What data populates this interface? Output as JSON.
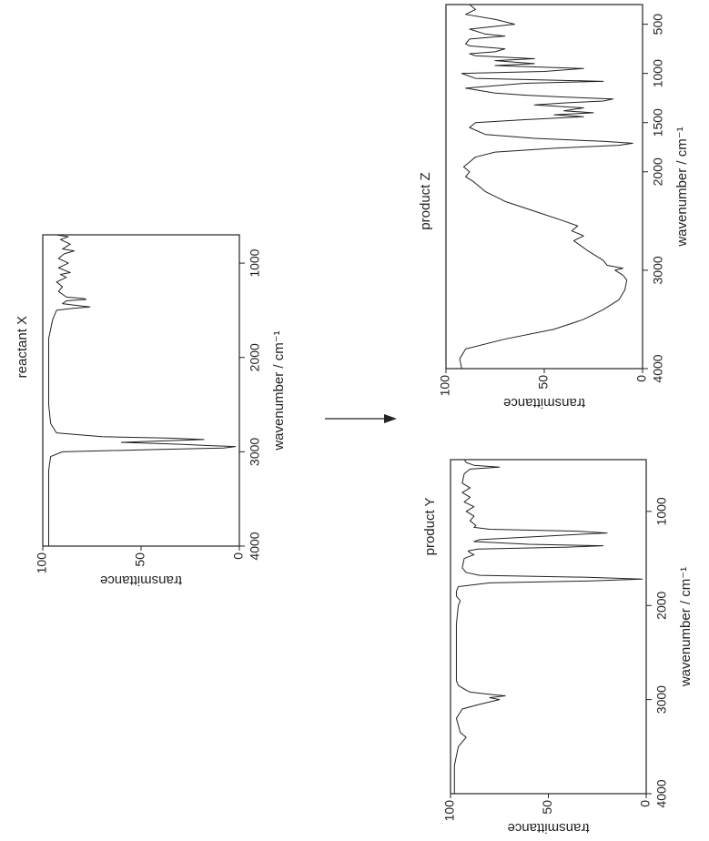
{
  "chart_data": [
    {
      "type": "line",
      "title": "reactant X",
      "xlabel": "wavenumber / cm⁻¹",
      "ylabel": "transmittance",
      "color": "#222222",
      "xlim": [
        4000,
        700
      ],
      "ylim": [
        0,
        100
      ],
      "xticks": [
        4000,
        3000,
        2000,
        1000
      ],
      "yticks": [
        0,
        50,
        100
      ],
      "x": [
        4000,
        3600,
        3200,
        3050,
        3000,
        2975,
        2960,
        2945,
        2935,
        2920,
        2900,
        2885,
        2870,
        2855,
        2840,
        2800,
        2700,
        2500,
        2200,
        2000,
        1800,
        1700,
        1600,
        1500,
        1480,
        1465,
        1450,
        1430,
        1400,
        1385,
        1375,
        1360,
        1300,
        1250,
        1200,
        1150,
        1120,
        1100,
        1050,
        1000,
        950,
        900,
        870,
        850,
        800,
        750,
        720,
        700
      ],
      "values": [
        97,
        97,
        97,
        96,
        90,
        40,
        8,
        2,
        15,
        30,
        60,
        40,
        18,
        35,
        70,
        93,
        96,
        97,
        97,
        97,
        97,
        96,
        95,
        93,
        85,
        76,
        82,
        90,
        88,
        78,
        79,
        88,
        92,
        90,
        93,
        88,
        91,
        86,
        92,
        87,
        92,
        89,
        84,
        90,
        86,
        91,
        87,
        93
      ]
    },
    {
      "type": "line",
      "title": "product Y",
      "xlabel": "wavenumber / cm⁻¹",
      "ylabel": "transmittance",
      "color": "#222222",
      "xlim": [
        4000,
        450
      ],
      "ylim": [
        0,
        100
      ],
      "xticks": [
        4000,
        3000,
        2000,
        1000
      ],
      "yticks": [
        0,
        50,
        100
      ],
      "x": [
        4000,
        3700,
        3500,
        3450,
        3400,
        3350,
        3200,
        3100,
        3050,
        3000,
        2980,
        2960,
        2940,
        2920,
        2900,
        2850,
        2800,
        2700,
        2500,
        2200,
        2000,
        1950,
        1900,
        1850,
        1800,
        1760,
        1740,
        1720,
        1700,
        1680,
        1650,
        1600,
        1500,
        1460,
        1440,
        1420,
        1400,
        1380,
        1365,
        1350,
        1320,
        1300,
        1250,
        1230,
        1210,
        1190,
        1170,
        1150,
        1100,
        1050,
        1000,
        950,
        900,
        850,
        800,
        750,
        700,
        600,
        550,
        530,
        510,
        480,
        450
      ],
      "values": [
        98,
        98,
        96,
        94,
        92,
        95,
        97,
        94,
        85,
        75,
        80,
        72,
        82,
        90,
        92,
        96,
        97,
        97,
        97,
        97,
        96,
        95,
        97,
        97,
        96,
        80,
        30,
        2,
        30,
        85,
        92,
        94,
        93,
        88,
        90,
        91,
        86,
        40,
        22,
        60,
        88,
        85,
        40,
        20,
        35,
        80,
        88,
        87,
        90,
        88,
        92,
        88,
        93,
        90,
        94,
        90,
        94,
        93,
        90,
        75,
        88,
        92,
        93
      ]
    },
    {
      "type": "line",
      "title": "product Z",
      "xlabel": "wavenumber / cm⁻¹",
      "ylabel": "transmittance",
      "color": "#222222",
      "xlim": [
        4000,
        300
      ],
      "ylim": [
        0,
        100
      ],
      "xticks": [
        4000,
        3000,
        2000,
        1500,
        1000,
        500
      ],
      "yticks": [
        0,
        50,
        100
      ],
      "x": [
        4000,
        3900,
        3800,
        3700,
        3600,
        3500,
        3400,
        3300,
        3200,
        3100,
        3050,
        3000,
        2980,
        2950,
        2900,
        2800,
        2700,
        2650,
        2600,
        2550,
        2500,
        2400,
        2300,
        2200,
        2100,
        2050,
        2000,
        1950,
        1900,
        1850,
        1800,
        1760,
        1730,
        1710,
        1690,
        1660,
        1620,
        1550,
        1500,
        1470,
        1440,
        1420,
        1400,
        1380,
        1350,
        1320,
        1300,
        1280,
        1260,
        1240,
        1220,
        1200,
        1150,
        1100,
        1080,
        1050,
        1000,
        980,
        950,
        920,
        900,
        870,
        850,
        820,
        800,
        780,
        750,
        720,
        700,
        650,
        620,
        600,
        550,
        500,
        450,
        400,
        350,
        300
      ],
      "values": [
        92,
        93,
        90,
        70,
        45,
        30,
        20,
        12,
        9,
        8,
        10,
        14,
        10,
        18,
        20,
        28,
        35,
        30,
        36,
        33,
        40,
        55,
        70,
        80,
        86,
        90,
        88,
        91,
        88,
        85,
        75,
        45,
        12,
        5,
        20,
        55,
        80,
        88,
        85,
        60,
        30,
        45,
        25,
        40,
        30,
        55,
        40,
        20,
        15,
        40,
        60,
        75,
        90,
        60,
        20,
        85,
        92,
        50,
        30,
        75,
        55,
        75,
        55,
        85,
        88,
        75,
        70,
        88,
        90,
        88,
        70,
        80,
        88,
        65,
        75,
        90,
        85,
        88
      ]
    }
  ]
}
